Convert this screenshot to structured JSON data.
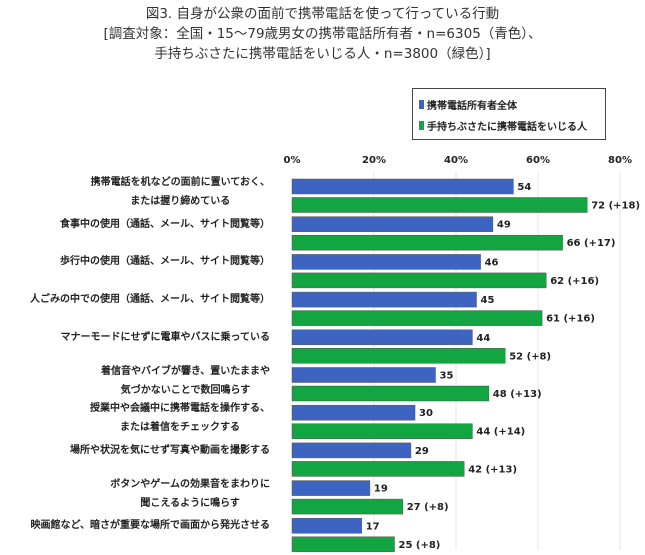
{
  "title": [
    "図3. 自身が公衆の面前で携帯電話を使って行っている行動",
    "[調査対象：全国・15～79歳男女の携帯電話所有者・n=6305（青色）、",
    "手持ちぶさたに携帯電話をいじる人・n=3800（緑色）]"
  ],
  "chart_data": {
    "type": "bar",
    "orientation": "horizontal",
    "xlim": [
      0,
      80
    ],
    "xticks": [
      "0%",
      "20%",
      "40%",
      "60%",
      "80%"
    ],
    "grid": true,
    "legend_placement": "top-right",
    "categories": [
      [
        "携帯電話を机などの面前に置いておく、",
        "または握り締めている"
      ],
      [
        "食事中の使用（通話、メール、サイト閲覧等）"
      ],
      [
        "歩行中の使用（通話、メール、サイト閲覧等）"
      ],
      [
        "人ごみの中での使用（通話、メール、サイト閲覧等）"
      ],
      [
        "マナーモードにせずに電車やバスに乗っている"
      ],
      [
        "着信音やバイブが響き、置いたままや",
        "気づかないことで数回鳴らす"
      ],
      [
        "授業中や会議中に携帯電話を操作する、",
        "または着信をチェックする"
      ],
      [
        "場所や状況を気にせず写真や動画を撮影する"
      ],
      [
        "ボタンやゲームの効果音をまわりに",
        "聞こえるように鳴らす"
      ],
      [
        "映画館など、暗さが重要な場所で画面から発光させる"
      ]
    ],
    "series": [
      {
        "name": "携帯電話所有者全体",
        "color": "#3c64c0",
        "values": [
          54,
          49,
          46,
          45,
          44,
          35,
          30,
          29,
          19,
          17
        ]
      },
      {
        "name": "手持ちぶさたに携帯電話をいじる人",
        "color": "#12a542",
        "values": [
          72,
          66,
          62,
          61,
          52,
          48,
          44,
          42,
          27,
          25
        ],
        "annotations": [
          "(+18)",
          "(+17)",
          "(+16)",
          "(+16)",
          "(+8)",
          "(+13)",
          "(+14)",
          "(+13)",
          "(+8)",
          "(+8)"
        ]
      }
    ]
  }
}
